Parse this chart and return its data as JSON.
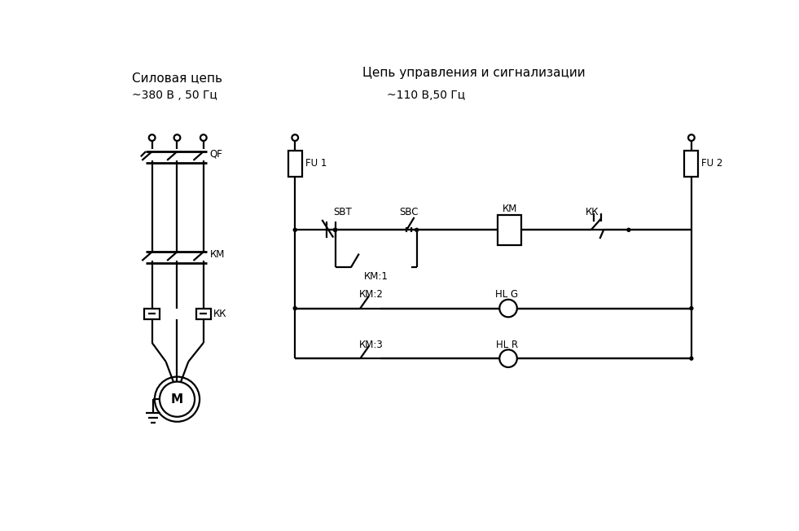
{
  "title_left": "Силовая цепь",
  "title_right": "Цепь управления и сигнализации",
  "subtitle_left": "~380 В , 50 Гц",
  "subtitle_right": "~110 В,50 Гц",
  "bg_color": "#ffffff",
  "lc": "#000000",
  "lw": 1.6
}
